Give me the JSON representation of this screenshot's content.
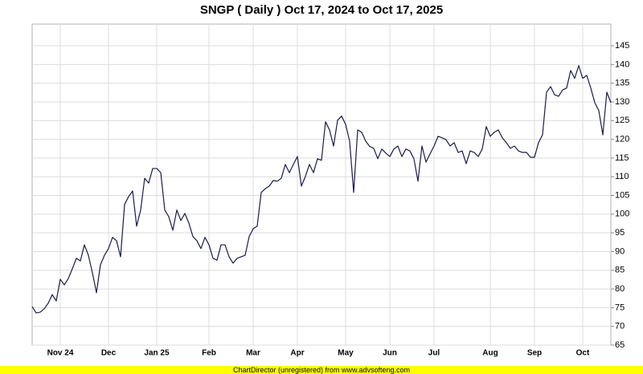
{
  "chart_data": {
    "type": "line",
    "title": "SNGP ( Daily ) Oct 17, 2024 to Oct 17, 2025",
    "color": "#1a1a4e",
    "grid": true,
    "ylim": [
      65,
      150.8
    ],
    "yticks": [
      65,
      70,
      75,
      80,
      85,
      90,
      95,
      100,
      105,
      110,
      115,
      120,
      125,
      130,
      135,
      140,
      145
    ],
    "categories": [
      null,
      null,
      null,
      null,
      null,
      null,
      null,
      "Nov 24",
      null,
      null,
      null,
      null,
      null,
      null,
      null,
      null,
      null,
      null,
      null,
      "Dec",
      null,
      null,
      null,
      null,
      null,
      null,
      null,
      null,
      null,
      null,
      null,
      "Jan 25",
      null,
      null,
      null,
      null,
      null,
      null,
      null,
      null,
      null,
      null,
      null,
      null,
      "Feb",
      null,
      null,
      null,
      null,
      null,
      null,
      null,
      null,
      null,
      null,
      "Mar",
      null,
      null,
      null,
      null,
      null,
      null,
      null,
      null,
      null,
      null,
      "Apr",
      null,
      null,
      null,
      null,
      null,
      null,
      null,
      null,
      null,
      null,
      null,
      "May",
      null,
      null,
      null,
      null,
      null,
      null,
      null,
      null,
      null,
      null,
      "Jun",
      null,
      null,
      null,
      null,
      null,
      null,
      null,
      null,
      null,
      null,
      "Jul",
      null,
      null,
      null,
      null,
      null,
      null,
      null,
      null,
      null,
      null,
      null,
      null,
      null,
      "Aug",
      null,
      null,
      null,
      null,
      null,
      null,
      null,
      null,
      null,
      null,
      "Sep",
      null,
      null,
      null,
      null,
      null,
      null,
      null,
      null,
      null,
      null,
      null,
      "Oct",
      null,
      null,
      null,
      null,
      null,
      null,
      null
    ],
    "values": [
      75.3,
      73.6,
      73.8,
      74.7,
      76.2,
      78.5,
      76.8,
      82.6,
      81.1,
      82.8,
      85.4,
      88.2,
      87.5,
      91.8,
      89.0,
      84.3,
      79.0,
      86.5,
      89.0,
      90.8,
      93.8,
      92.9,
      88.6,
      102.6,
      104.7,
      106.2,
      96.8,
      101.1,
      109.6,
      108.3,
      112.2,
      112.2,
      111.1,
      101.1,
      99.3,
      95.7,
      101.1,
      98.3,
      100.2,
      97.6,
      94.0,
      92.9,
      90.8,
      93.8,
      91.8,
      88.2,
      87.7,
      91.8,
      91.8,
      88.6,
      86.9,
      88.2,
      88.6,
      89.0,
      94.0,
      96.1,
      96.8,
      105.8,
      106.8,
      107.5,
      109.0,
      108.8,
      109.6,
      113.3,
      111.1,
      113.3,
      115.4,
      107.5,
      110.1,
      113.3,
      111.1,
      114.8,
      114.4,
      124.7,
      122.5,
      118.2,
      125.1,
      126.2,
      124.0,
      119.5,
      105.8,
      122.5,
      121.9,
      119.5,
      118.1,
      117.6,
      114.8,
      117.4,
      116.3,
      115.4,
      117.4,
      118.2,
      115.4,
      117.4,
      116.9,
      114.8,
      108.8,
      118.2,
      113.9,
      116.1,
      118.2,
      120.8,
      120.4,
      119.9,
      118.2,
      119.1,
      116.5,
      116.9,
      113.5,
      116.9,
      116.5,
      115.4,
      117.4,
      123.4,
      120.8,
      121.9,
      122.5,
      120.4,
      119.1,
      117.6,
      118.2,
      116.9,
      116.5,
      116.5,
      115.2,
      115.2,
      119.1,
      121.2,
      132.6,
      134.1,
      131.9,
      131.5,
      133.2,
      133.7,
      138.4,
      136.3,
      139.7,
      136.3,
      137.1,
      133.7,
      129.8,
      127.7,
      121.2,
      132.6,
      129.8
    ]
  },
  "footer": "ChartDirector (unregistered) from www.advsofteng.com"
}
